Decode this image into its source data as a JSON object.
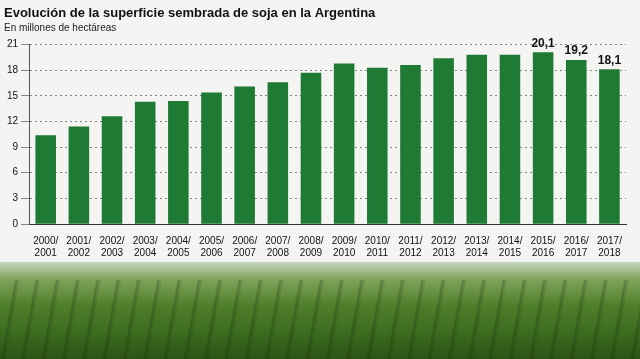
{
  "chart_data": {
    "type": "bar",
    "title": "Evolución de la superficie sembrada de soja en la Argentina",
    "subtitle": "En millones de hectáreas",
    "categories": [
      [
        "2000/",
        "2001"
      ],
      [
        "2001/",
        "2002"
      ],
      [
        "2002/",
        "2003"
      ],
      [
        "2003/",
        "2004"
      ],
      [
        "2004/",
        "2005"
      ],
      [
        "2005/",
        "2006"
      ],
      [
        "2006/",
        "2007"
      ],
      [
        "2007/",
        "2008"
      ],
      [
        "2008/",
        "2009"
      ],
      [
        "2009/",
        "2010"
      ],
      [
        "2010/",
        "2011"
      ],
      [
        "2011/",
        "2012"
      ],
      [
        "2012/",
        "2013"
      ],
      [
        "2013/",
        "2014"
      ],
      [
        "2014/",
        "2015"
      ],
      [
        "2015/",
        "2016"
      ],
      [
        "2016/",
        "2017"
      ],
      [
        "2017/",
        "2018"
      ]
    ],
    "values": [
      10.4,
      11.4,
      12.6,
      14.3,
      14.4,
      15.4,
      16.1,
      16.6,
      17.7,
      18.8,
      18.3,
      18.6,
      19.4,
      19.8,
      19.8,
      20.1,
      19.2,
      18.1
    ],
    "value_labels": [
      null,
      null,
      null,
      null,
      null,
      null,
      null,
      null,
      null,
      null,
      null,
      null,
      null,
      null,
      null,
      "20,1",
      "19,2",
      "18,1"
    ],
    "data_labels": true,
    "color": "#1f7a34",
    "ylim": [
      0,
      21
    ],
    "yticks": [
      0,
      3,
      6,
      9,
      12,
      15,
      18,
      21
    ],
    "grid": true
  }
}
